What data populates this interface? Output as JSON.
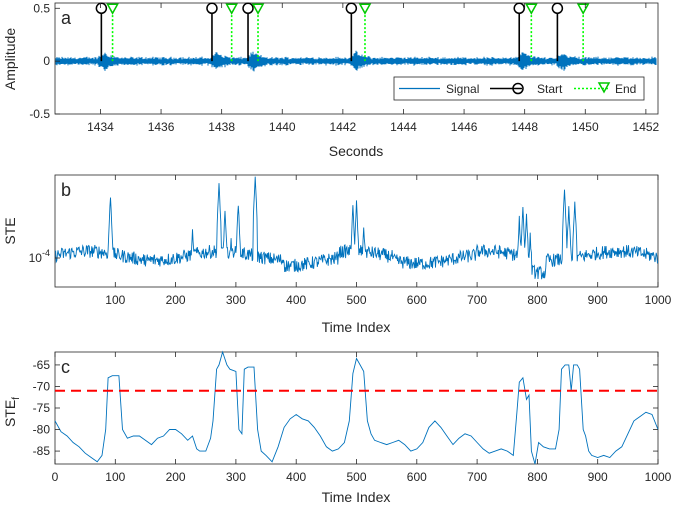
{
  "chart_data": [
    {
      "panel_label": "a",
      "type": "line",
      "xlabel": "Seconds",
      "ylabel": "Amplitude",
      "xlim": [
        1432.5,
        1452.4
      ],
      "ylim": [
        -0.5,
        0.55
      ],
      "xticks": [
        1434,
        1436,
        1438,
        1440,
        1442,
        1444,
        1446,
        1448,
        1450,
        1452
      ],
      "yticks": [
        -0.5,
        0,
        0.5
      ],
      "ytick_labels": [
        "-0.5",
        "0",
        "0.5"
      ],
      "signal_color": "#0072BD",
      "start_color": "#000000",
      "end_color": "#00FF00",
      "legend": {
        "placement": "bottom-right",
        "entries": [
          "Signal",
          "Start",
          "End"
        ]
      },
      "bursts_seconds": [
        1434.0,
        1437.7,
        1438.9,
        1442.3,
        1447.8,
        1449.1
      ],
      "start_markers": {
        "x": [
          1434.03,
          1437.68,
          1438.87,
          1442.28,
          1447.82,
          1449.08
        ],
        "y": 0.5
      },
      "end_markers": {
        "x": [
          1434.4,
          1438.33,
          1439.2,
          1442.73,
          1448.22,
          1449.93
        ],
        "y": 0.5
      }
    },
    {
      "panel_label": "b",
      "type": "line",
      "xlabel": "Time Index",
      "ylabel": "STE",
      "yscale": "log",
      "xlim": [
        0,
        1000
      ],
      "xticks": [
        100,
        200,
        300,
        400,
        500,
        600,
        700,
        800,
        900,
        1000
      ],
      "ytick_labels": [
        "10^-4"
      ],
      "line_color": "#0072BD",
      "peaks": [
        {
          "x": 92,
          "level": 0.82
        },
        {
          "x": 150,
          "level": 0.12
        },
        {
          "x": 228,
          "level": 0.5
        },
        {
          "x": 272,
          "level": 0.92
        },
        {
          "x": 282,
          "level": 0.68
        },
        {
          "x": 292,
          "level": 0.45
        },
        {
          "x": 304,
          "level": 0.75
        },
        {
          "x": 332,
          "level": 0.98
        },
        {
          "x": 494,
          "level": 0.72
        },
        {
          "x": 500,
          "level": 0.76
        },
        {
          "x": 512,
          "level": 0.55
        },
        {
          "x": 770,
          "level": 0.62
        },
        {
          "x": 776,
          "level": 0.72
        },
        {
          "x": 782,
          "level": 0.65
        },
        {
          "x": 788,
          "level": 0.48
        },
        {
          "x": 845,
          "level": 0.88
        },
        {
          "x": 852,
          "level": 0.72
        },
        {
          "x": 862,
          "level": 0.78
        }
      ]
    },
    {
      "panel_label": "c",
      "type": "line",
      "xlabel": "Time Index",
      "ylabel": "STE",
      "ylabel_subscript": "f",
      "xlim": [
        0,
        1000
      ],
      "ylim": [
        -88,
        -62
      ],
      "xticks": [
        0,
        100,
        200,
        300,
        400,
        500,
        600,
        700,
        800,
        900,
        1000
      ],
      "yticks": [
        -85,
        -80,
        -75,
        -70,
        -65
      ],
      "threshold": -71,
      "line_color": "#0072BD",
      "threshold_color": "#FF0000",
      "x": [
        0,
        10,
        20,
        30,
        40,
        50,
        60,
        70,
        78,
        84,
        88,
        95,
        100,
        106,
        112,
        120,
        130,
        140,
        150,
        160,
        170,
        180,
        190,
        200,
        210,
        220,
        228,
        235,
        240,
        250,
        258,
        262,
        268,
        272,
        278,
        285,
        290,
        300,
        305,
        310,
        314,
        320,
        326,
        330,
        336,
        342,
        350,
        360,
        370,
        380,
        390,
        400,
        410,
        420,
        430,
        440,
        450,
        460,
        470,
        480,
        488,
        494,
        500,
        506,
        512,
        518,
        524,
        530,
        540,
        550,
        560,
        570,
        580,
        590,
        600,
        610,
        620,
        630,
        640,
        650,
        660,
        670,
        680,
        690,
        700,
        710,
        720,
        730,
        740,
        750,
        760,
        766,
        770,
        776,
        782,
        786,
        790,
        796,
        802,
        810,
        820,
        830,
        836,
        840,
        846,
        852,
        856,
        860,
        866,
        870,
        876,
        880,
        885,
        890,
        900,
        910,
        920,
        930,
        940,
        950,
        960,
        970,
        980,
        990,
        1000
      ],
      "y": [
        -78,
        -80.5,
        -81.5,
        -83,
        -84,
        -85.5,
        -86.5,
        -87.5,
        -86,
        -80,
        -68,
        -67.5,
        -67.5,
        -67.5,
        -80,
        -82,
        -81.5,
        -81.5,
        -82.5,
        -83.5,
        -82,
        -81.5,
        -80,
        -80,
        -81,
        -82.5,
        -81.5,
        -84.5,
        -85,
        -85,
        -82,
        -78,
        -66,
        -65,
        -62,
        -65,
        -66,
        -66.5,
        -80,
        -81,
        -66,
        -65.5,
        -65.5,
        -65.5,
        -80,
        -85,
        -86,
        -87.5,
        -84,
        -79.5,
        -77.5,
        -76.5,
        -77.5,
        -78,
        -79.5,
        -81.5,
        -84,
        -85,
        -84.5,
        -83,
        -78,
        -67,
        -63.5,
        -65,
        -66.5,
        -78,
        -81,
        -82.5,
        -83,
        -83.5,
        -83,
        -82.5,
        -83.5,
        -85,
        -84.5,
        -83,
        -79.5,
        -78,
        -79.5,
        -81.5,
        -83.5,
        -82,
        -81,
        -81.5,
        -83,
        -84.5,
        -85.5,
        -85,
        -84.5,
        -85,
        -86,
        -76,
        -69,
        -68,
        -73,
        -72,
        -85,
        -88,
        -83,
        -84,
        -84.5,
        -84.5,
        -80,
        -66,
        -65,
        -65,
        -71,
        -65,
        -65,
        -66,
        -80,
        -81.5,
        -85,
        -86,
        -86.5,
        -86,
        -86.5,
        -85,
        -84,
        -81,
        -78,
        -77,
        -76,
        -76.5,
        -80
      ]
    }
  ]
}
